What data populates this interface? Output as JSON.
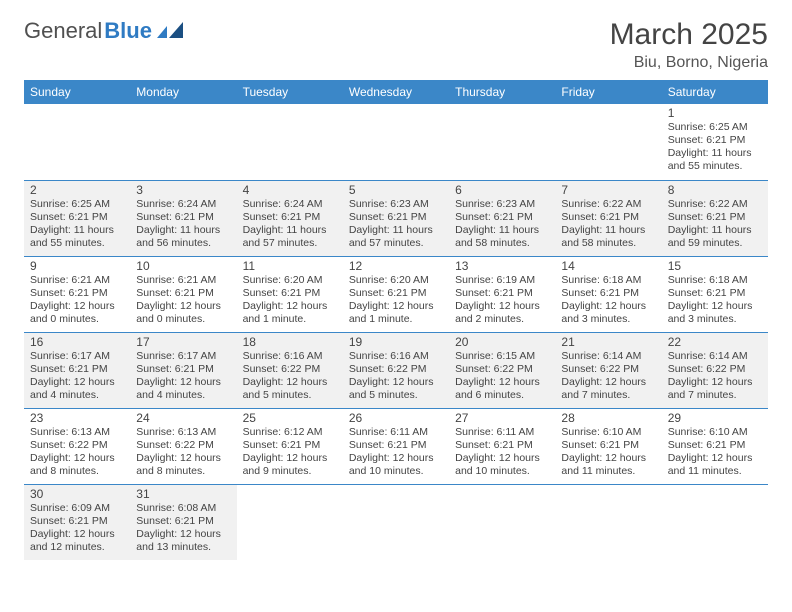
{
  "header": {
    "logo_general": "General",
    "logo_blue": "Blue",
    "month_title": "March 2025",
    "location": "Biu, Borno, Nigeria"
  },
  "colors": {
    "header_bg": "#3b87c8",
    "header_text": "#ffffff",
    "shade_bg": "#f1f1f1",
    "border": "#3b87c8",
    "text": "#444444"
  },
  "weekdays": [
    "Sunday",
    "Monday",
    "Tuesday",
    "Wednesday",
    "Thursday",
    "Friday",
    "Saturday"
  ],
  "weeks": [
    [
      {
        "day": "",
        "sunrise": "",
        "sunset": "",
        "daylight": "",
        "shade": false
      },
      {
        "day": "",
        "sunrise": "",
        "sunset": "",
        "daylight": "",
        "shade": false
      },
      {
        "day": "",
        "sunrise": "",
        "sunset": "",
        "daylight": "",
        "shade": false
      },
      {
        "day": "",
        "sunrise": "",
        "sunset": "",
        "daylight": "",
        "shade": false
      },
      {
        "day": "",
        "sunrise": "",
        "sunset": "",
        "daylight": "",
        "shade": false
      },
      {
        "day": "",
        "sunrise": "",
        "sunset": "",
        "daylight": "",
        "shade": false
      },
      {
        "day": "1",
        "sunrise": "Sunrise: 6:25 AM",
        "sunset": "Sunset: 6:21 PM",
        "daylight": "Daylight: 11 hours and 55 minutes.",
        "shade": false
      }
    ],
    [
      {
        "day": "2",
        "sunrise": "Sunrise: 6:25 AM",
        "sunset": "Sunset: 6:21 PM",
        "daylight": "Daylight: 11 hours and 55 minutes.",
        "shade": true
      },
      {
        "day": "3",
        "sunrise": "Sunrise: 6:24 AM",
        "sunset": "Sunset: 6:21 PM",
        "daylight": "Daylight: 11 hours and 56 minutes.",
        "shade": true
      },
      {
        "day": "4",
        "sunrise": "Sunrise: 6:24 AM",
        "sunset": "Sunset: 6:21 PM",
        "daylight": "Daylight: 11 hours and 57 minutes.",
        "shade": true
      },
      {
        "day": "5",
        "sunrise": "Sunrise: 6:23 AM",
        "sunset": "Sunset: 6:21 PM",
        "daylight": "Daylight: 11 hours and 57 minutes.",
        "shade": true
      },
      {
        "day": "6",
        "sunrise": "Sunrise: 6:23 AM",
        "sunset": "Sunset: 6:21 PM",
        "daylight": "Daylight: 11 hours and 58 minutes.",
        "shade": true
      },
      {
        "day": "7",
        "sunrise": "Sunrise: 6:22 AM",
        "sunset": "Sunset: 6:21 PM",
        "daylight": "Daylight: 11 hours and 58 minutes.",
        "shade": true
      },
      {
        "day": "8",
        "sunrise": "Sunrise: 6:22 AM",
        "sunset": "Sunset: 6:21 PM",
        "daylight": "Daylight: 11 hours and 59 minutes.",
        "shade": true
      }
    ],
    [
      {
        "day": "9",
        "sunrise": "Sunrise: 6:21 AM",
        "sunset": "Sunset: 6:21 PM",
        "daylight": "Daylight: 12 hours and 0 minutes.",
        "shade": false
      },
      {
        "day": "10",
        "sunrise": "Sunrise: 6:21 AM",
        "sunset": "Sunset: 6:21 PM",
        "daylight": "Daylight: 12 hours and 0 minutes.",
        "shade": false
      },
      {
        "day": "11",
        "sunrise": "Sunrise: 6:20 AM",
        "sunset": "Sunset: 6:21 PM",
        "daylight": "Daylight: 12 hours and 1 minute.",
        "shade": false
      },
      {
        "day": "12",
        "sunrise": "Sunrise: 6:20 AM",
        "sunset": "Sunset: 6:21 PM",
        "daylight": "Daylight: 12 hours and 1 minute.",
        "shade": false
      },
      {
        "day": "13",
        "sunrise": "Sunrise: 6:19 AM",
        "sunset": "Sunset: 6:21 PM",
        "daylight": "Daylight: 12 hours and 2 minutes.",
        "shade": false
      },
      {
        "day": "14",
        "sunrise": "Sunrise: 6:18 AM",
        "sunset": "Sunset: 6:21 PM",
        "daylight": "Daylight: 12 hours and 3 minutes.",
        "shade": false
      },
      {
        "day": "15",
        "sunrise": "Sunrise: 6:18 AM",
        "sunset": "Sunset: 6:21 PM",
        "daylight": "Daylight: 12 hours and 3 minutes.",
        "shade": false
      }
    ],
    [
      {
        "day": "16",
        "sunrise": "Sunrise: 6:17 AM",
        "sunset": "Sunset: 6:21 PM",
        "daylight": "Daylight: 12 hours and 4 minutes.",
        "shade": true
      },
      {
        "day": "17",
        "sunrise": "Sunrise: 6:17 AM",
        "sunset": "Sunset: 6:21 PM",
        "daylight": "Daylight: 12 hours and 4 minutes.",
        "shade": true
      },
      {
        "day": "18",
        "sunrise": "Sunrise: 6:16 AM",
        "sunset": "Sunset: 6:22 PM",
        "daylight": "Daylight: 12 hours and 5 minutes.",
        "shade": true
      },
      {
        "day": "19",
        "sunrise": "Sunrise: 6:16 AM",
        "sunset": "Sunset: 6:22 PM",
        "daylight": "Daylight: 12 hours and 5 minutes.",
        "shade": true
      },
      {
        "day": "20",
        "sunrise": "Sunrise: 6:15 AM",
        "sunset": "Sunset: 6:22 PM",
        "daylight": "Daylight: 12 hours and 6 minutes.",
        "shade": true
      },
      {
        "day": "21",
        "sunrise": "Sunrise: 6:14 AM",
        "sunset": "Sunset: 6:22 PM",
        "daylight": "Daylight: 12 hours and 7 minutes.",
        "shade": true
      },
      {
        "day": "22",
        "sunrise": "Sunrise: 6:14 AM",
        "sunset": "Sunset: 6:22 PM",
        "daylight": "Daylight: 12 hours and 7 minutes.",
        "shade": true
      }
    ],
    [
      {
        "day": "23",
        "sunrise": "Sunrise: 6:13 AM",
        "sunset": "Sunset: 6:22 PM",
        "daylight": "Daylight: 12 hours and 8 minutes.",
        "shade": false
      },
      {
        "day": "24",
        "sunrise": "Sunrise: 6:13 AM",
        "sunset": "Sunset: 6:22 PM",
        "daylight": "Daylight: 12 hours and 8 minutes.",
        "shade": false
      },
      {
        "day": "25",
        "sunrise": "Sunrise: 6:12 AM",
        "sunset": "Sunset: 6:21 PM",
        "daylight": "Daylight: 12 hours and 9 minutes.",
        "shade": false
      },
      {
        "day": "26",
        "sunrise": "Sunrise: 6:11 AM",
        "sunset": "Sunset: 6:21 PM",
        "daylight": "Daylight: 12 hours and 10 minutes.",
        "shade": false
      },
      {
        "day": "27",
        "sunrise": "Sunrise: 6:11 AM",
        "sunset": "Sunset: 6:21 PM",
        "daylight": "Daylight: 12 hours and 10 minutes.",
        "shade": false
      },
      {
        "day": "28",
        "sunrise": "Sunrise: 6:10 AM",
        "sunset": "Sunset: 6:21 PM",
        "daylight": "Daylight: 12 hours and 11 minutes.",
        "shade": false
      },
      {
        "day": "29",
        "sunrise": "Sunrise: 6:10 AM",
        "sunset": "Sunset: 6:21 PM",
        "daylight": "Daylight: 12 hours and 11 minutes.",
        "shade": false
      }
    ],
    [
      {
        "day": "30",
        "sunrise": "Sunrise: 6:09 AM",
        "sunset": "Sunset: 6:21 PM",
        "daylight": "Daylight: 12 hours and 12 minutes.",
        "shade": true
      },
      {
        "day": "31",
        "sunrise": "Sunrise: 6:08 AM",
        "sunset": "Sunset: 6:21 PM",
        "daylight": "Daylight: 12 hours and 13 minutes.",
        "shade": true
      },
      {
        "day": "",
        "sunrise": "",
        "sunset": "",
        "daylight": "",
        "shade": false
      },
      {
        "day": "",
        "sunrise": "",
        "sunset": "",
        "daylight": "",
        "shade": false
      },
      {
        "day": "",
        "sunrise": "",
        "sunset": "",
        "daylight": "",
        "shade": false
      },
      {
        "day": "",
        "sunrise": "",
        "sunset": "",
        "daylight": "",
        "shade": false
      },
      {
        "day": "",
        "sunrise": "",
        "sunset": "",
        "daylight": "",
        "shade": false
      }
    ]
  ]
}
